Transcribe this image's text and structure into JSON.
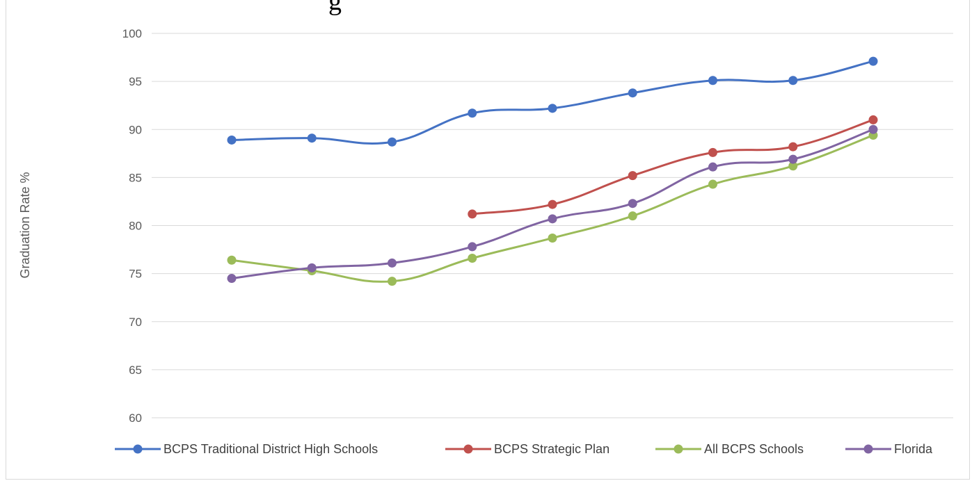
{
  "chart_data": {
    "type": "line",
    "title_fragment": "g",
    "ylabel": "Graduation Rate %",
    "xlabel": "",
    "ylim": [
      60,
      100
    ],
    "yticks": [
      60,
      65,
      70,
      75,
      80,
      85,
      90,
      95,
      100
    ],
    "x": [
      1,
      2,
      3,
      4,
      5,
      6,
      7,
      8,
      9
    ],
    "grid": "horizontal",
    "legend": "bottom",
    "series": [
      {
        "name": "BCPS Traditional District High Schools",
        "color": "#4472c4",
        "values": [
          88.9,
          89.1,
          88.7,
          91.7,
          92.2,
          93.8,
          95.1,
          95.1,
          97.1
        ]
      },
      {
        "name": "BCPS Strategic Plan",
        "color": "#c0504d",
        "values": [
          null,
          null,
          null,
          81.2,
          82.2,
          85.2,
          87.6,
          88.2,
          91.0
        ]
      },
      {
        "name": "All BCPS Schools",
        "color": "#9bbb59",
        "values": [
          76.4,
          75.3,
          74.2,
          76.6,
          78.7,
          81.0,
          84.3,
          86.2,
          89.4
        ]
      },
      {
        "name": "Florida",
        "color": "#8064a2",
        "values": [
          74.5,
          75.6,
          76.1,
          77.8,
          80.7,
          82.3,
          86.1,
          86.9,
          90.0
        ]
      }
    ]
  }
}
